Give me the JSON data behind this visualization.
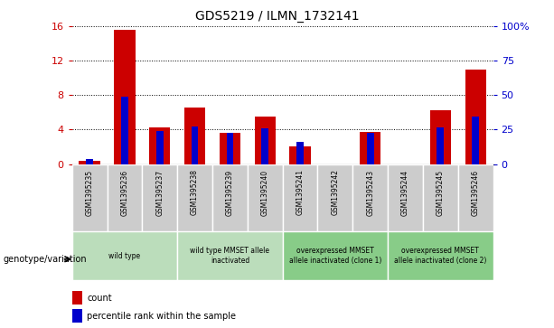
{
  "title": "GDS5219 / ILMN_1732141",
  "samples": [
    "GSM1395235",
    "GSM1395236",
    "GSM1395237",
    "GSM1395238",
    "GSM1395239",
    "GSM1395240",
    "GSM1395241",
    "GSM1395242",
    "GSM1395243",
    "GSM1395244",
    "GSM1395245",
    "GSM1395246"
  ],
  "count": [
    0.4,
    15.6,
    4.2,
    6.6,
    3.6,
    5.5,
    2.0,
    0.0,
    3.7,
    0.0,
    6.2,
    11.0
  ],
  "percentile": [
    3.5,
    48.75,
    23.75,
    27.5,
    22.5,
    25.625,
    16.25,
    0.0,
    22.5,
    0.0,
    26.25,
    34.375
  ],
  "ylim_left": [
    0,
    16
  ],
  "ylim_right": [
    0,
    100
  ],
  "yticks_left": [
    0,
    4,
    8,
    12,
    16
  ],
  "yticks_right": [
    0,
    25,
    50,
    75,
    100
  ],
  "ytick_labels_right": [
    "0",
    "25",
    "50",
    "75",
    "100%"
  ],
  "color_count": "#cc0000",
  "color_percentile": "#0000cc",
  "legend_label_count": "count",
  "legend_label_percentile": "percentile rank within the sample",
  "genotype_label": "genotype/variation",
  "group_configs": [
    {
      "start": 0,
      "end": 2,
      "label": "wild type",
      "color": "#bbddbb"
    },
    {
      "start": 3,
      "end": 5,
      "label": "wild type MMSET allele\ninactivated",
      "color": "#bbddbb"
    },
    {
      "start": 6,
      "end": 8,
      "label": "overexpressed MMSET\nallele inactivated (clone 1)",
      "color": "#88cc88"
    },
    {
      "start": 9,
      "end": 11,
      "label": "overexpressed MMSET\nallele inactivated (clone 2)",
      "color": "#88cc88"
    }
  ]
}
